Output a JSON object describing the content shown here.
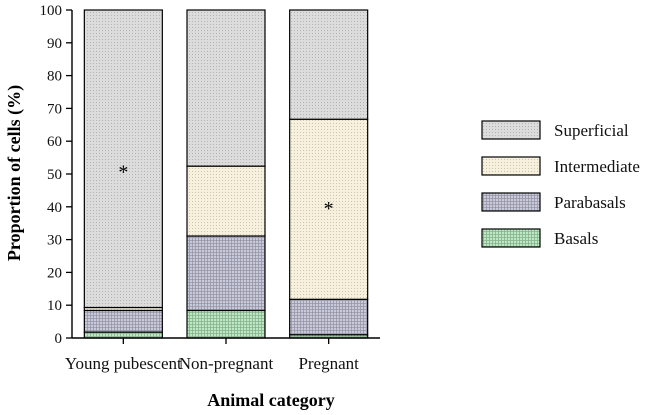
{
  "chart_data": {
    "type": "bar",
    "stacked": true,
    "title": "",
    "xlabel": "Animal category",
    "ylabel": "Proportion of cells (%)",
    "ylim": [
      0,
      100
    ],
    "yticks": [
      0,
      10,
      20,
      30,
      40,
      50,
      60,
      70,
      80,
      90,
      100
    ],
    "categories": [
      "Young pubescent",
      "Non-pregnant",
      "Pregnant"
    ],
    "series": [
      {
        "name": "Basals",
        "color": "#b8ecc0",
        "values": [
          1.8,
          8.4,
          1.0
        ]
      },
      {
        "name": "Parabasals",
        "color": "#c9c9dd",
        "values": [
          6.6,
          22.7,
          10.8
        ]
      },
      {
        "name": "Intermediate",
        "color": "#f6f0dc",
        "values": [
          0.9,
          21.3,
          54.9
        ]
      },
      {
        "name": "Superficial",
        "color": "#dcdcdc",
        "values": [
          90.7,
          47.6,
          33.3
        ]
      }
    ],
    "legend_order": [
      "Superficial",
      "Intermediate",
      "Parabasals",
      "Basals"
    ],
    "annotations": [
      {
        "category": "Young pubescent",
        "text": "*",
        "y": 51
      },
      {
        "category": "Pregnant",
        "text": "*",
        "y": 40
      }
    ],
    "legend_position": "right"
  }
}
